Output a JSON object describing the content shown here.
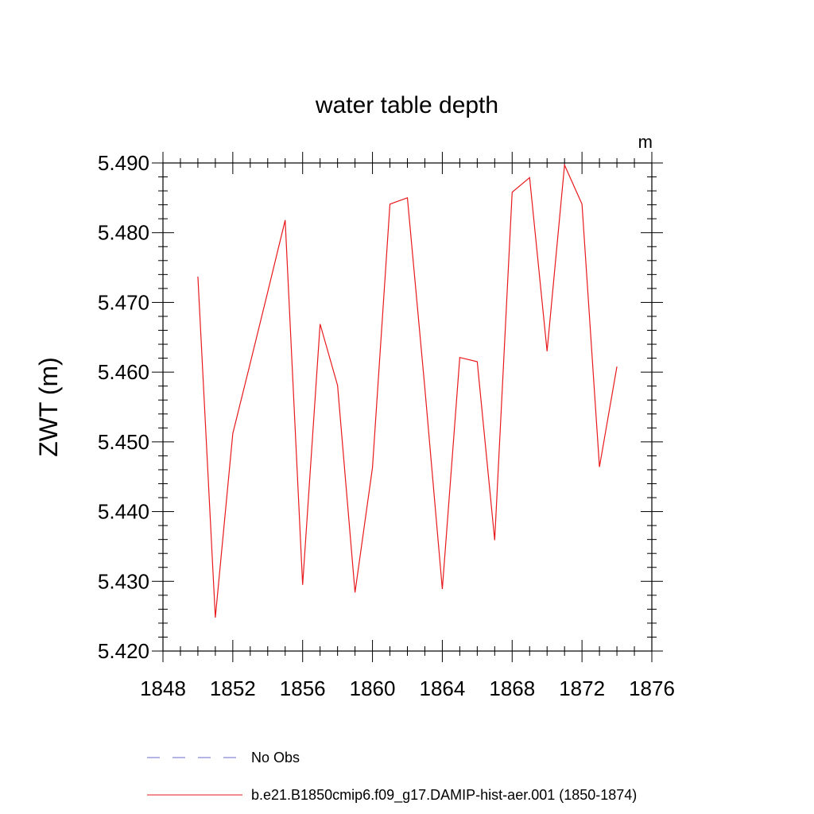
{
  "chart_data": {
    "type": "line",
    "title": "water table depth",
    "units_label": "m",
    "xlabel": "",
    "ylabel": "ZWT  (m)",
    "xlim": [
      1848,
      1876
    ],
    "ylim": [
      5.42,
      5.49
    ],
    "xticks": [
      "1848",
      "1852",
      "1856",
      "1860",
      "1864",
      "1868",
      "1872",
      "1876"
    ],
    "yticks": [
      "5.420",
      "5.430",
      "5.440",
      "5.450",
      "5.460",
      "5.470",
      "5.480",
      "5.490"
    ],
    "grid": false,
    "legend_placement": "bottom",
    "series": [
      {
        "name": "No Obs",
        "color": "#6a6acd",
        "dash": "dashed",
        "x": [],
        "values": []
      },
      {
        "name": "b.e21.B1850cmip6.f09_g17.DAMIP-hist-aer.001 (1850-1874)",
        "color": "#e8191c",
        "dash": "solid",
        "x": [
          1850,
          1851,
          1852,
          1853,
          1854,
          1855,
          1856,
          1857,
          1858,
          1859,
          1860,
          1861,
          1862,
          1863,
          1864,
          1865,
          1866,
          1867,
          1868,
          1869,
          1870,
          1871,
          1872,
          1873,
          1874
        ],
        "values": [
          5.4737,
          5.4248,
          5.4512,
          5.4613,
          5.4715,
          5.4818,
          5.4295,
          5.4669,
          5.4581,
          5.4284,
          5.4463,
          5.4841,
          5.485,
          5.4577,
          5.4289,
          5.4621,
          5.4615,
          5.4359,
          5.4858,
          5.4879,
          5.463,
          5.4897,
          5.4841,
          5.4464,
          5.4608
        ]
      }
    ]
  }
}
